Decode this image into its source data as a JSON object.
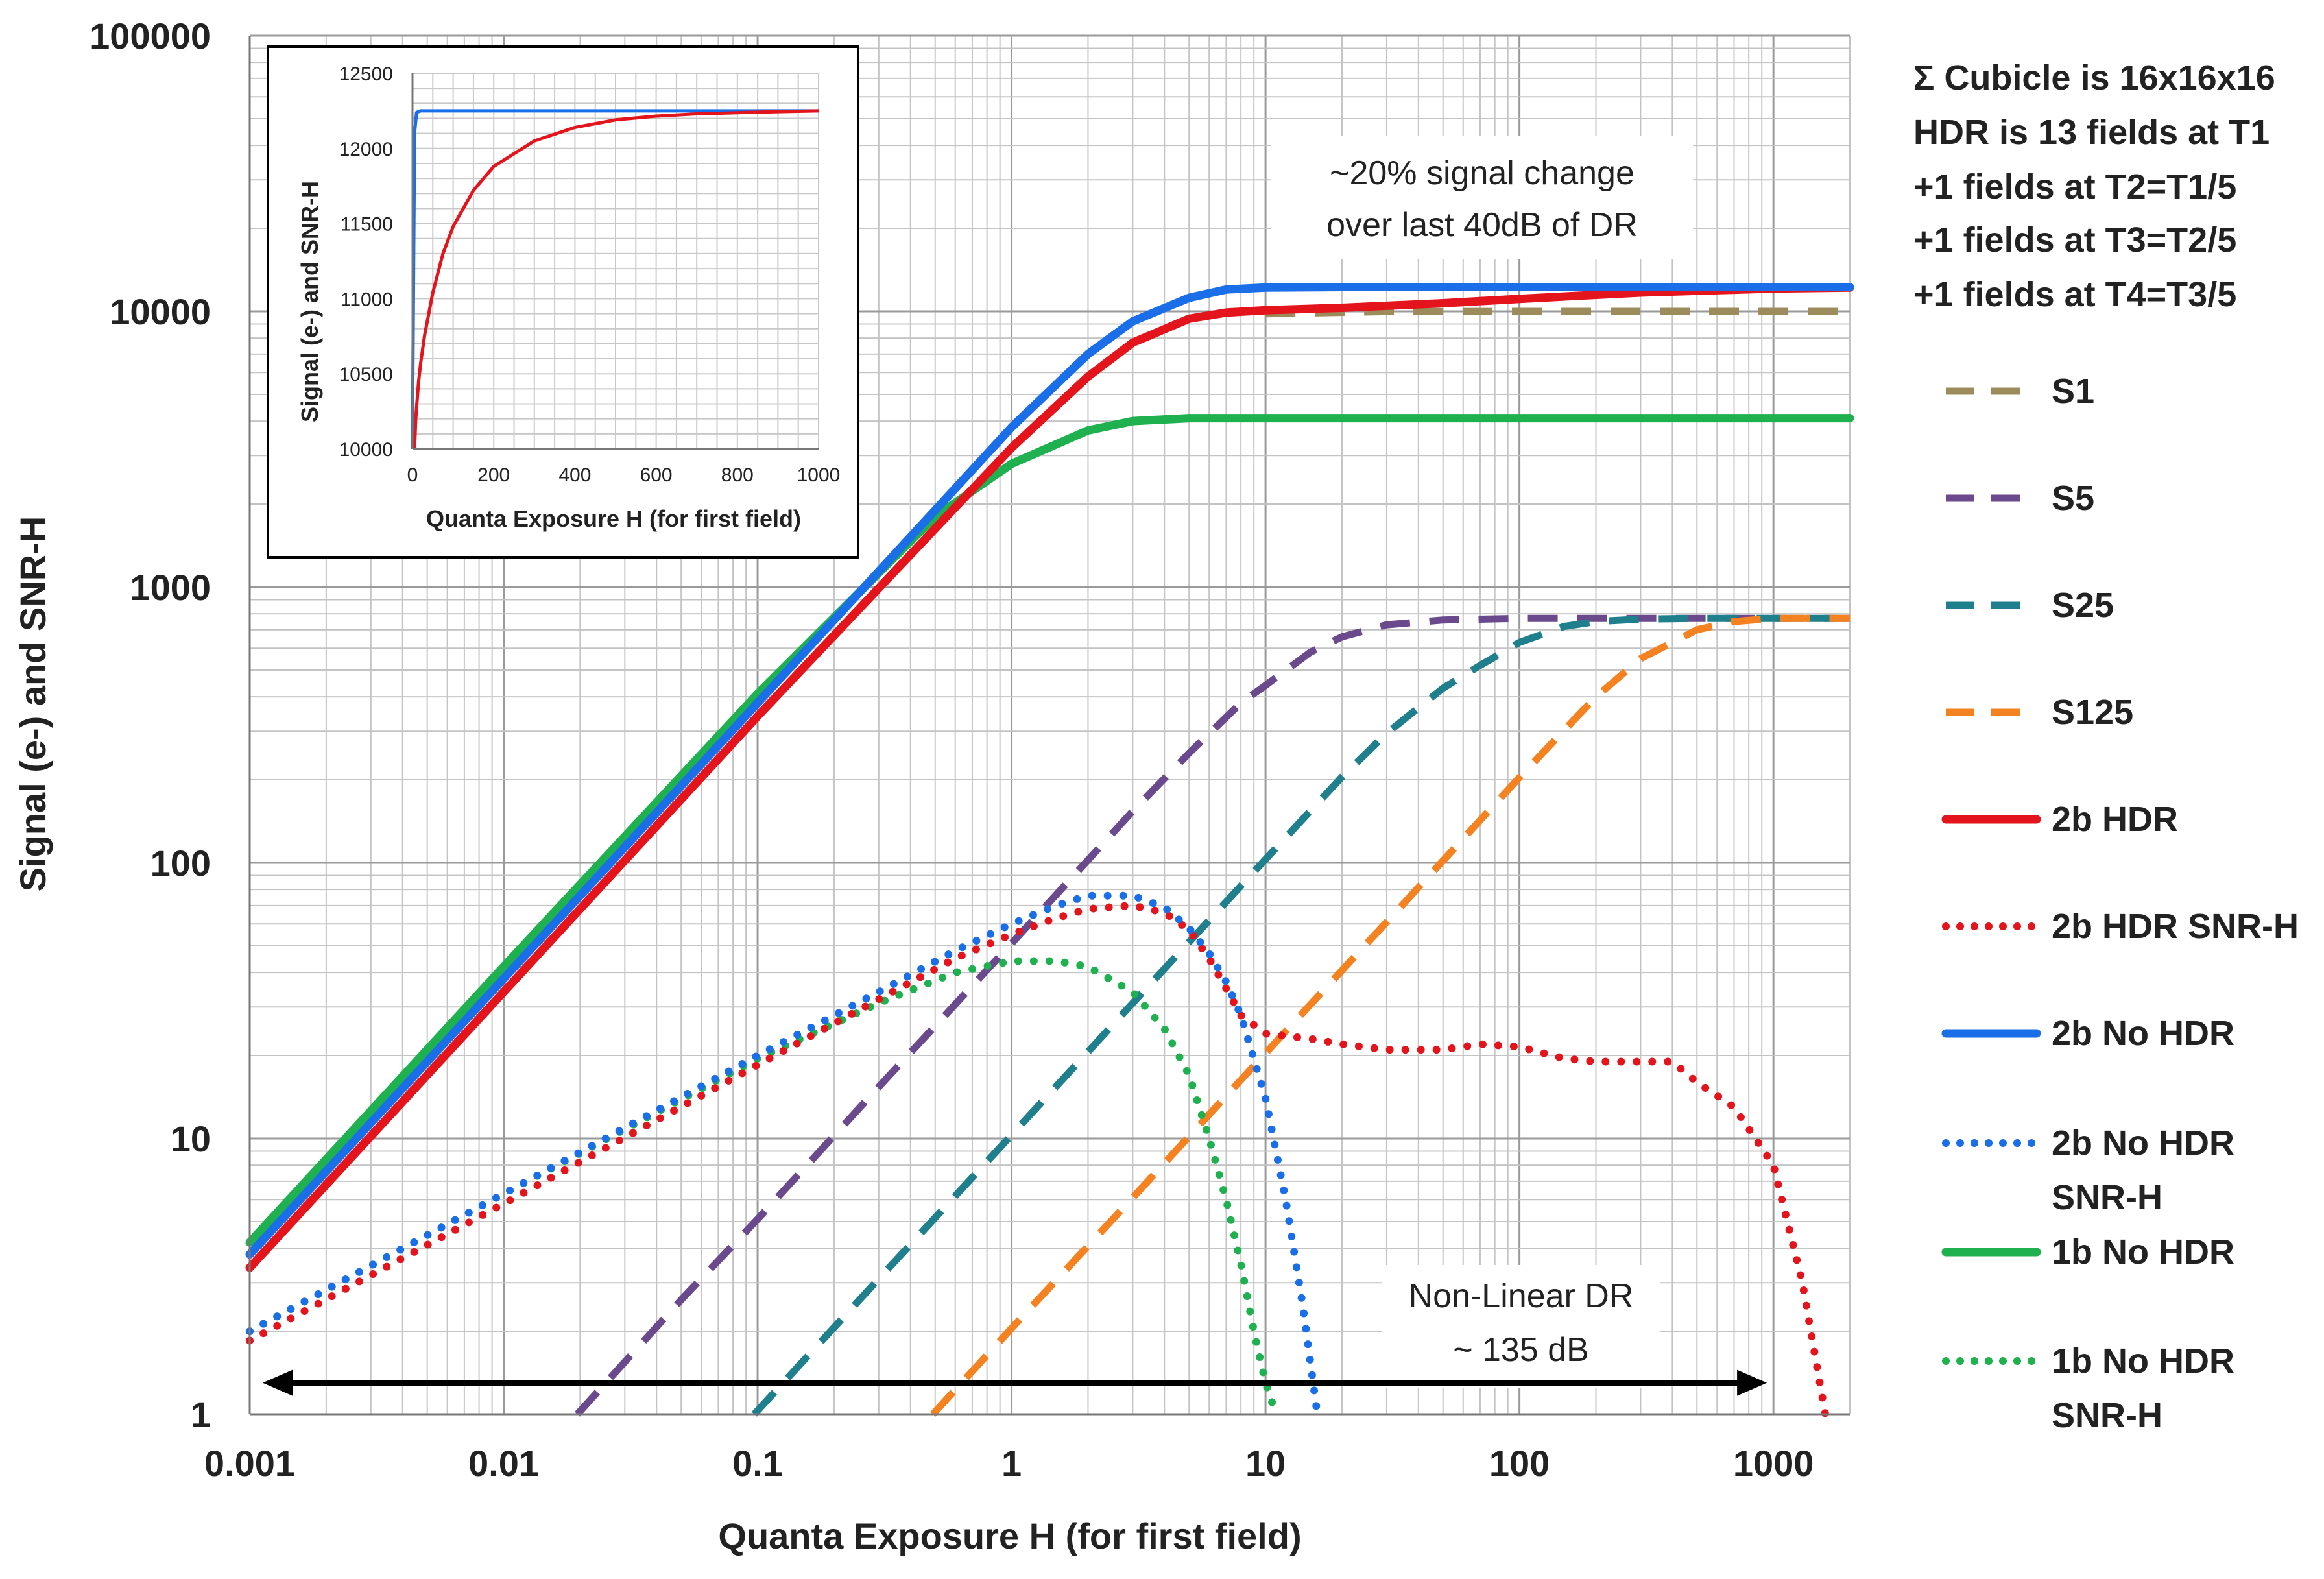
{
  "chart_data": {
    "type": "line",
    "xscale": "log",
    "yscale": "log",
    "xlabel": "Quanta Exposure H (for first field)",
    "ylabel": "Signal (e-) and SNR-H",
    "xlim": [
      0.001,
      2000
    ],
    "ylim": [
      1,
      100000
    ],
    "x_ticks": [
      0.001,
      0.01,
      0.1,
      1,
      10,
      100,
      1000
    ],
    "x_tick_labels": [
      "0.001",
      "0.01",
      "0.1",
      "1",
      "10",
      "100",
      "1000"
    ],
    "y_ticks": [
      1,
      10,
      100,
      1000,
      10000,
      100000
    ],
    "y_tick_labels": [
      "1",
      "10",
      "100",
      "1000",
      "10000",
      "100000"
    ],
    "grid": true,
    "info_lines": [
      "Σ Cubicle is 16x16x16",
      "HDR is 13 fields at T1",
      "+1 fields at T2=T1/5",
      "+1 fields at T3=T2/5",
      "+1 fields at T4=T3/5"
    ],
    "annotations": [
      {
        "lines": [
          "~20% signal change",
          "over last 40dB of DR"
        ]
      },
      {
        "lines": [
          "Non-Linear DR",
          "~ 135 dB"
        ],
        "arrow_from_x": 0.001,
        "arrow_to_x": 1000,
        "arrow_y": 1.3
      }
    ],
    "series": [
      {
        "name": "S1",
        "legend": [
          "S1"
        ],
        "color": "#9c8c5c",
        "style": "dashed",
        "x": [
          10,
          30,
          100,
          300,
          1000,
          2000
        ],
        "y": [
          9800,
          9980,
          10000,
          10000,
          10000,
          10000
        ]
      },
      {
        "name": "S5",
        "legend": [
          "S5"
        ],
        "color": "#6a4a8c",
        "style": "dashed",
        "x": [
          0.0195,
          0.05,
          0.1,
          0.3,
          1,
          3,
          5,
          8,
          10,
          15,
          20,
          30,
          50,
          100,
          200,
          500,
          2000
        ],
        "y": [
          1,
          2.6,
          5.1,
          15.4,
          51,
          154,
          250,
          380,
          440,
          580,
          660,
          730,
          760,
          770,
          770,
          770,
          770
        ]
      },
      {
        "name": "S25",
        "legend": [
          "S25"
        ],
        "color": "#1f7f8c",
        "style": "dashed",
        "x": [
          0.097,
          0.3,
          1,
          3,
          10,
          20,
          30,
          50,
          70,
          100,
          150,
          200,
          300,
          500,
          1000,
          2000
        ],
        "y": [
          1,
          3.1,
          10.3,
          31,
          103,
          205,
          295,
          430,
          520,
          630,
          720,
          750,
          765,
          770,
          770,
          770
        ]
      },
      {
        "name": "S125",
        "legend": [
          "S125"
        ],
        "color": "#f58220",
        "style": "dashed",
        "x": [
          0.49,
          1,
          3,
          10,
          30,
          100,
          200,
          300,
          500,
          700,
          1000,
          1500,
          2000
        ],
        "y": [
          1,
          2.05,
          6.1,
          20.4,
          61,
          204,
          400,
          550,
          700,
          750,
          770,
          770,
          770
        ]
      },
      {
        "name": "2b HDR",
        "legend": [
          "2b HDR"
        ],
        "color": "#e3141b",
        "style": "solid",
        "x": [
          0.001,
          0.01,
          0.1,
          1,
          2,
          3,
          5,
          7,
          10,
          20,
          50,
          100,
          300,
          1000,
          2000
        ],
        "y": [
          3.4,
          34,
          340,
          3200,
          5800,
          7700,
          9400,
          9900,
          10100,
          10300,
          10700,
          11100,
          11700,
          12100,
          12200
        ]
      },
      {
        "name": "2b HDR SNR-H",
        "legend": [
          "2b HDR SNR-H"
        ],
        "color": "#e3141b",
        "style": "dotted",
        "x": [
          0.001,
          0.01,
          0.1,
          0.3,
          0.6,
          1,
          1.5,
          2,
          3,
          4,
          5,
          6,
          7,
          8,
          10,
          15,
          20,
          30,
          50,
          70,
          100,
          150,
          200,
          300,
          400,
          500,
          700,
          1000,
          1300,
          1600
        ],
        "y": [
          1.85,
          5.8,
          18.5,
          32,
          45,
          55,
          63,
          68,
          70,
          66,
          57,
          45,
          35,
          28,
          24,
          23,
          22,
          21,
          21,
          22,
          21.5,
          19.5,
          19,
          19,
          19,
          16,
          13,
          8,
          3,
          1
        ]
      },
      {
        "name": "2b No HDR",
        "legend": [
          "2b No HDR"
        ],
        "color": "#1a6fe8",
        "style": "solid",
        "x": [
          0.001,
          0.01,
          0.1,
          1,
          2,
          3,
          5,
          7,
          10,
          20,
          50,
          100,
          1000,
          2000
        ],
        "y": [
          3.8,
          38,
          380,
          3800,
          7000,
          9200,
          11200,
          12000,
          12200,
          12250,
          12250,
          12250,
          12250,
          12250
        ]
      },
      {
        "name": "2b No HDR SNR-H",
        "legend": [
          "2b No HDR",
          "SNR-H"
        ],
        "color": "#1a6fe8",
        "style": "dotted",
        "x": [
          0.001,
          0.01,
          0.1,
          0.3,
          0.6,
          1,
          1.5,
          2,
          3,
          4,
          5,
          6,
          7,
          8,
          10,
          12,
          14,
          16
        ],
        "y": [
          2,
          6.3,
          20,
          34,
          48,
          60,
          70,
          76,
          76,
          69,
          58,
          47,
          37,
          28,
          14,
          6,
          2.5,
          1
        ]
      },
      {
        "name": "1b No HDR",
        "legend": [
          "1b No HDR"
        ],
        "color": "#1fb04f",
        "style": "solid",
        "x": [
          0.001,
          0.01,
          0.1,
          0.5,
          1,
          2,
          3,
          5,
          7,
          10,
          20,
          100,
          2000
        ],
        "y": [
          4.2,
          42,
          410,
          1800,
          2800,
          3700,
          4000,
          4100,
          4100,
          4100,
          4100,
          4100,
          4100
        ]
      },
      {
        "name": "1b No HDR SNR-H",
        "legend": [
          "1b No HDR",
          "SNR-H"
        ],
        "color": "#1fb04f",
        "style": "dotted",
        "x": [
          0.001,
          0.01,
          0.1,
          0.3,
          0.6,
          1,
          1.5,
          2,
          3,
          4,
          5,
          6,
          7,
          8,
          9,
          10,
          11
        ],
        "y": [
          2,
          6.3,
          19.5,
          31,
          40,
          44,
          44,
          42,
          34,
          25,
          17,
          10,
          6,
          3.5,
          2,
          1.3,
          1
        ]
      }
    ],
    "inset": {
      "xlabel": "Quanta Exposure H (for first field)",
      "ylabel": "Signal (e-) and SNR-H",
      "xlim": [
        0,
        1000
      ],
      "ylim": [
        10000,
        12500
      ],
      "x_ticks": [
        0,
        200,
        400,
        600,
        800,
        1000
      ],
      "x_tick_labels": [
        "0",
        "200",
        "400",
        "600",
        "800",
        "1000"
      ],
      "y_ticks": [
        10000,
        10500,
        11000,
        11500,
        12000,
        12500
      ],
      "y_tick_labels": [
        "10000",
        "10500",
        "11000",
        "11500",
        "12000",
        "12500"
      ],
      "series": [
        {
          "name": "2b No HDR",
          "color": "#1a6fe8",
          "x": [
            0,
            1,
            5,
            10,
            20,
            50,
            100,
            200,
            400,
            600,
            800,
            1000
          ],
          "y": [
            10000,
            10500,
            12100,
            12240,
            12250,
            12250,
            12250,
            12250,
            12250,
            12250,
            12250,
            12250
          ]
        },
        {
          "name": "2b HDR",
          "color": "#e3141b",
          "x": [
            5,
            8,
            10,
            15,
            20,
            30,
            50,
            75,
            100,
            150,
            200,
            300,
            400,
            500,
            600,
            700,
            800,
            900,
            1000
          ],
          "y": [
            10000,
            10200,
            10280,
            10450,
            10570,
            10760,
            11040,
            11300,
            11480,
            11720,
            11880,
            12050,
            12140,
            12190,
            12215,
            12230,
            12238,
            12245,
            12250
          ]
        }
      ]
    }
  }
}
